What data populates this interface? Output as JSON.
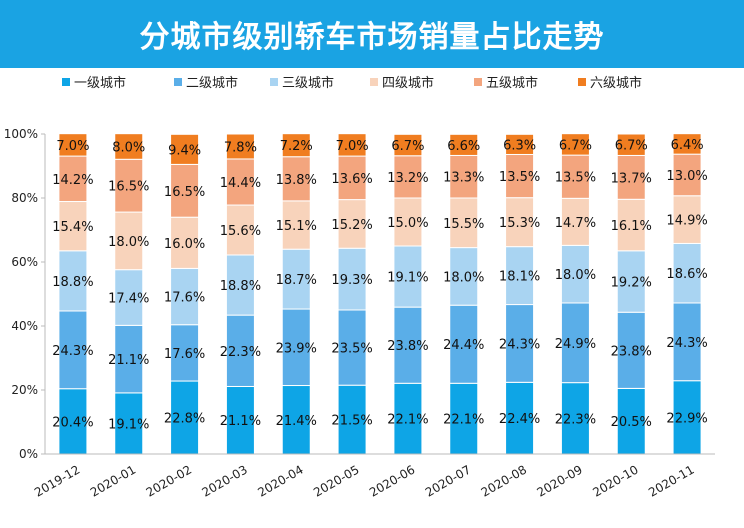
{
  "header": {
    "title": "分城市级别轿车市场销量占比走势"
  },
  "chart_data": {
    "type": "bar",
    "stacked": true,
    "title": "分城市级别轿车市场销量占比走势",
    "categories": [
      "2019-12",
      "2020-01",
      "2020-02",
      "2020-03",
      "2020-04",
      "2020-05",
      "2020-06",
      "2020-07",
      "2020-08",
      "2020-09",
      "2020-10",
      "2020-11"
    ],
    "ylim": [
      0,
      100
    ],
    "yticks": [
      "0%",
      "20%",
      "40%",
      "60%",
      "80%",
      "100%"
    ],
    "legend_position": "top",
    "series": [
      {
        "name": "一级城市",
        "color": "#0ea5e6",
        "values": [
          20.4,
          19.1,
          22.8,
          21.1,
          21.4,
          21.5,
          22.1,
          22.1,
          22.4,
          22.3,
          20.5,
          22.9
        ]
      },
      {
        "name": "二级城市",
        "color": "#5aaee8",
        "values": [
          24.3,
          21.1,
          17.6,
          22.3,
          23.9,
          23.5,
          23.8,
          24.4,
          24.3,
          24.9,
          23.8,
          24.3
        ]
      },
      {
        "name": "三级城市",
        "color": "#a9d4f2",
        "values": [
          18.8,
          17.4,
          17.6,
          18.8,
          18.7,
          19.3,
          19.1,
          18.0,
          18.1,
          18.0,
          19.2,
          18.6
        ]
      },
      {
        "name": "四级城市",
        "color": "#f8d3bb",
        "values": [
          15.4,
          18.0,
          16.0,
          15.6,
          15.1,
          15.2,
          15.0,
          15.5,
          15.3,
          14.7,
          16.1,
          14.9
        ]
      },
      {
        "name": "五级城市",
        "color": "#f3a57e",
        "values": [
          14.2,
          16.5,
          16.5,
          14.4,
          13.8,
          13.6,
          13.2,
          13.3,
          13.5,
          13.5,
          13.7,
          13.0
        ]
      },
      {
        "name": "六级城市",
        "color": "#f07d20",
        "values": [
          7.0,
          8.0,
          9.4,
          7.8,
          7.2,
          7.0,
          6.7,
          6.6,
          6.3,
          6.7,
          6.7,
          6.4
        ]
      }
    ]
  }
}
